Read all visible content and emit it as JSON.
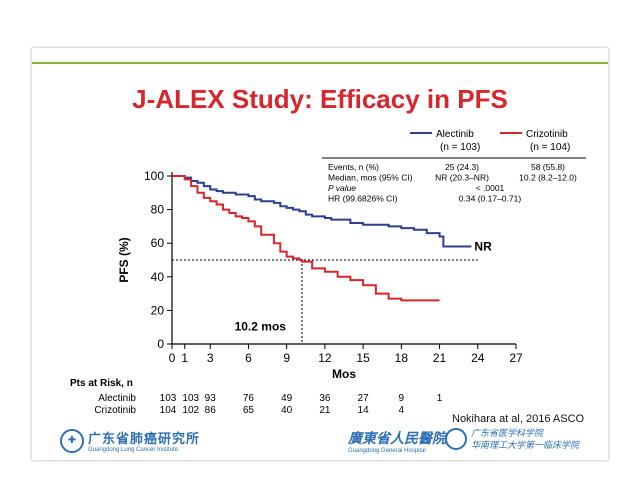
{
  "slide": {
    "title": "J-ALEX Study: Efficacy in PFS",
    "reference": "Nokihara at al, 2016 ASCO",
    "logo_left_main": "广东省肺癌研究所",
    "logo_left_sub": "Guangdong Lung Cancer Institute",
    "logo_mid_main": "廣東省人民醫院",
    "logo_mid_sub": "Guangdong General Hospital",
    "logo_right_line1": "广东省医学科学院",
    "logo_right_line2": "华南理工大学第一临床学院",
    "accent_color": "#86b53a",
    "title_color": "#d7262c"
  },
  "stats_table": {
    "rows": [
      {
        "label": "Events, n (%)",
        "alectinib": "25 (24.3)",
        "crizotinib": "58 (55.8)"
      },
      {
        "label": "Median, mos (95% CI)",
        "alectinib": "NR (20.3–NR)",
        "crizotinib": "10.2 (8.2–12.0)"
      },
      {
        "label": "P value",
        "combined": "< .0001"
      },
      {
        "label": "HR (99.6826% CI)",
        "combined": "0.34 (0.17–0.71)"
      }
    ]
  },
  "risk_table": {
    "title": "Pts at Risk, n",
    "rows": [
      {
        "label": "Alectinib",
        "values": [
          "103",
          "103",
          "93",
          "76",
          "49",
          "36",
          "27",
          "9",
          "1"
        ]
      },
      {
        "label": "Crizotinib",
        "values": [
          "104",
          "102",
          "86",
          "65",
          "40",
          "21",
          "14",
          "4",
          ""
        ]
      }
    ]
  },
  "chart_data": {
    "type": "line",
    "title": "J-ALEX Study: Efficacy in PFS",
    "xlabel": "Mos",
    "ylabel": "PFS (%)",
    "xlim": [
      0,
      27
    ],
    "ylim": [
      0,
      100
    ],
    "x_ticks": [
      0,
      1,
      3,
      6,
      9,
      12,
      15,
      18,
      21,
      24,
      27
    ],
    "y_ticks": [
      0,
      20,
      40,
      60,
      80,
      100
    ],
    "legend_position": "top-right",
    "series": [
      {
        "name": "Alectinib",
        "n_label": "(n = 103)",
        "color": "#2c3f8f",
        "end_label": "NR",
        "x": [
          0,
          1,
          1.5,
          2,
          2.5,
          3,
          3.5,
          4,
          5,
          6,
          6.5,
          7,
          8,
          8.5,
          9,
          9.5,
          10,
          10.5,
          11,
          12,
          12.5,
          14,
          15,
          16,
          17,
          18,
          19,
          20,
          20.5,
          21,
          21.3,
          22.3,
          23.5
        ],
        "y": [
          100,
          99,
          97,
          96,
          94,
          92,
          91,
          90,
          89,
          88,
          86,
          85,
          84,
          82,
          81,
          80,
          79,
          77,
          76,
          75,
          74,
          72,
          71,
          71,
          70,
          69,
          68,
          66,
          66,
          64,
          58,
          58,
          58
        ]
      },
      {
        "name": "Crizotinib",
        "n_label": "(n = 104)",
        "color": "#d7262c",
        "x": [
          0,
          1,
          1.5,
          2,
          2.5,
          3,
          3.5,
          4,
          4.5,
          5,
          5.5,
          6,
          6.5,
          7,
          8,
          8.5,
          9,
          9.5,
          10,
          10.2,
          11,
          12,
          13,
          14,
          15,
          16,
          17,
          18,
          19,
          20,
          21
        ],
        "y": [
          100,
          98,
          94,
          90,
          87,
          85,
          83,
          80,
          78,
          76,
          75,
          73,
          70,
          65,
          60,
          55,
          52,
          51,
          50,
          49,
          45,
          43,
          40,
          38,
          35,
          30,
          27,
          26,
          26,
          26,
          26
        ]
      }
    ],
    "annotations": [
      {
        "text": "10.2 mos",
        "x": 10.2,
        "y": 50
      }
    ]
  }
}
